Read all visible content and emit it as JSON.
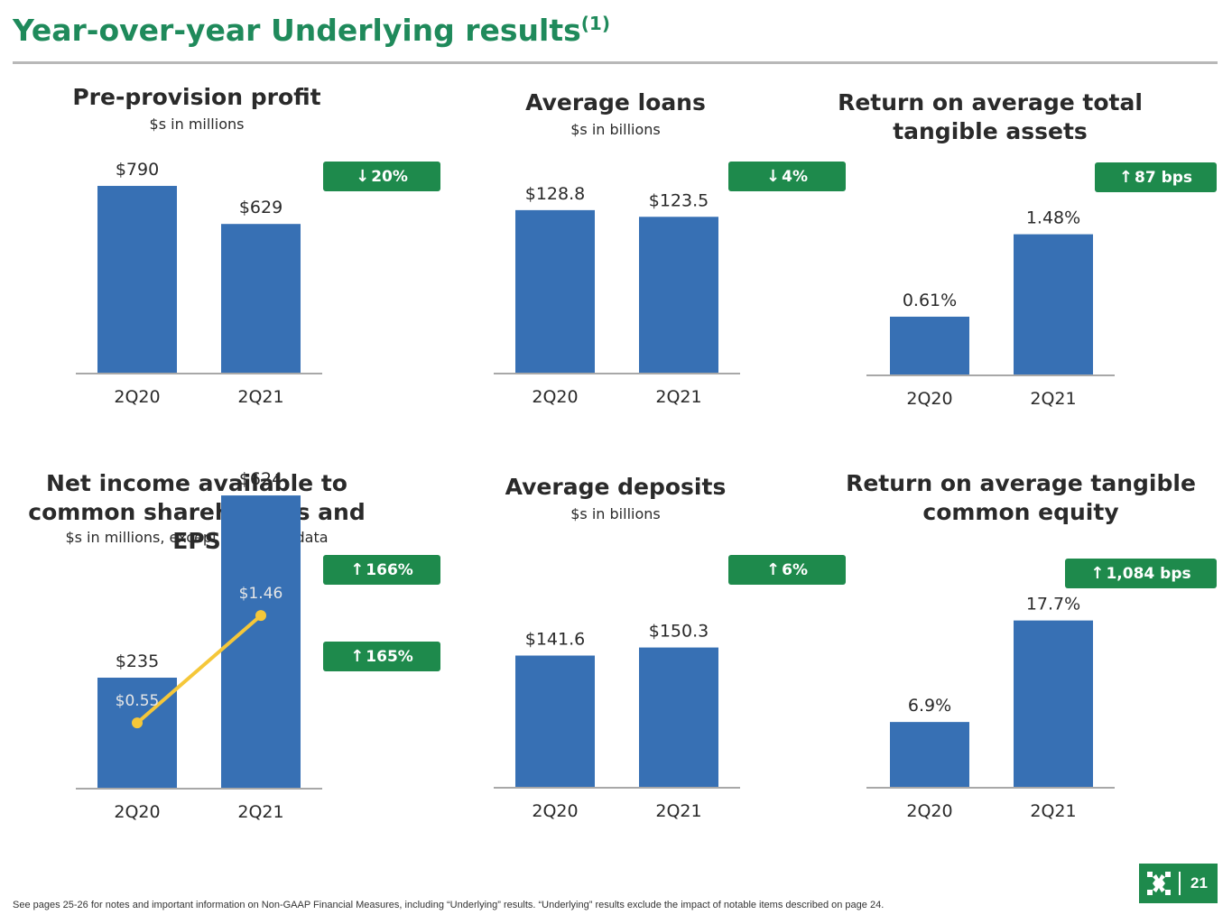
{
  "page": {
    "title": "Year-over-year Underlying results",
    "title_superscript": "(1)",
    "footnote": "See pages 25-26 for notes and important information on Non-GAAP Financial Measures, including “Underlying” results. “Underlying” results exclude the impact of notable items described on page 24.",
    "page_number": "21",
    "accent_color": "#1e8a4c",
    "bar_color": "#3770b4",
    "line_color": "#f5c739",
    "logo_icon": "bank-logo-icon"
  },
  "chart_data": [
    {
      "type": "bar",
      "title": "Pre-provision profit",
      "subtitle": "$s in millions",
      "categories": [
        "2Q20",
        "2Q21"
      ],
      "values": [
        790,
        629
      ],
      "labels": [
        "$790",
        "$629"
      ],
      "ylim": [
        0,
        1000
      ],
      "change": {
        "direction": "down",
        "text": "20%"
      }
    },
    {
      "type": "bar",
      "title": "Average loans",
      "subtitle": "$s in billions",
      "categories": [
        "2Q20",
        "2Q21"
      ],
      "values": [
        128.8,
        123.5
      ],
      "labels": [
        "$128.8",
        "$123.5"
      ],
      "ylim": [
        0,
        138
      ],
      "change": {
        "direction": "down",
        "text": "4%"
      }
    },
    {
      "type": "bar",
      "title": "Return on average total tangible assets",
      "subtitle": "",
      "categories": [
        "2Q20",
        "2Q21"
      ],
      "values": [
        0.61,
        1.48
      ],
      "labels": [
        "0.61%",
        "1.48%"
      ],
      "ylim": [
        0,
        2.0
      ],
      "change": {
        "direction": "up",
        "text": "87 bps"
      }
    },
    {
      "type": "bar",
      "title": "Net income available to common shareholders and EPS",
      "subtitle": "$s in millions, except per share data",
      "categories": [
        "2Q20",
        "2Q21"
      ],
      "values": [
        235,
        624
      ],
      "labels": [
        "$235",
        "$624"
      ],
      "ylim": [
        0,
        680
      ],
      "line_series": {
        "values": [
          0.55,
          1.46
        ],
        "labels": [
          "$0.55",
          "$1.46"
        ],
        "ylim": [
          0,
          2.7
        ]
      },
      "change": {
        "direction": "up",
        "text": "166%"
      },
      "change_2": {
        "direction": "up",
        "text": "165%"
      }
    },
    {
      "type": "bar",
      "title": "Average deposits",
      "subtitle": "$s in billions",
      "categories": [
        "2Q20",
        "2Q21"
      ],
      "values": [
        141.6,
        150.3
      ],
      "labels": [
        "$141.6",
        "$150.3"
      ],
      "ylim": [
        0,
        255
      ],
      "change": {
        "direction": "up",
        "text": "6%"
      }
    },
    {
      "type": "bar",
      "title": "Return on average tangible common equity",
      "subtitle": "",
      "categories": [
        "2Q20",
        "2Q21"
      ],
      "values": [
        6.9,
        17.7
      ],
      "labels": [
        "6.9%",
        "17.7%"
      ],
      "ylim": [
        0,
        24
      ],
      "change": {
        "direction": "up",
        "text": "1,084 bps"
      }
    }
  ]
}
